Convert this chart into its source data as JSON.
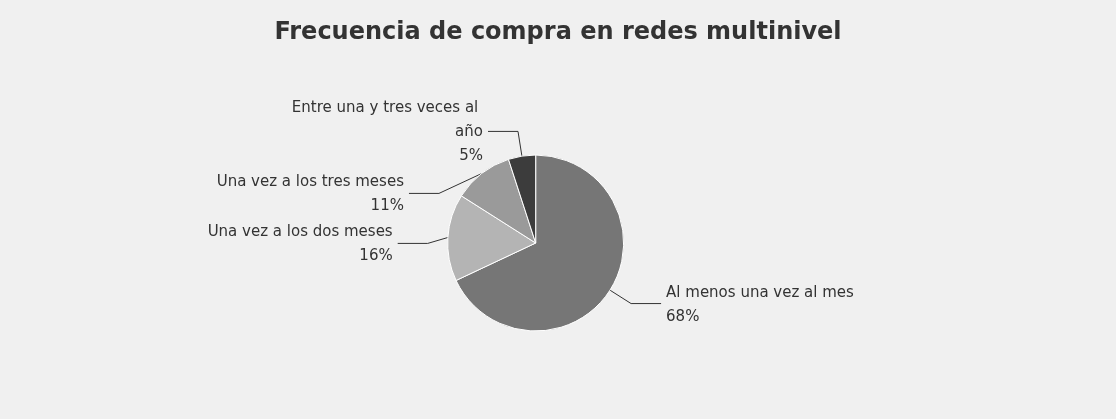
{
  "chart_data": {
    "type": "pie",
    "title": "Frecuencia de compra en redes multinivel",
    "categories": [
      "Al menos una vez al mes",
      "Una vez a los dos meses",
      "Una vez a los tres meses",
      "Entre una y tres veces al año"
    ],
    "values": [
      68,
      16,
      11,
      5
    ],
    "colors": [
      "#767676",
      "#b4b4b4",
      "#9a9a9a",
      "#3c3c3c"
    ],
    "value_labels": [
      "68%",
      "16%",
      "11%",
      "5%"
    ],
    "legend": false
  }
}
